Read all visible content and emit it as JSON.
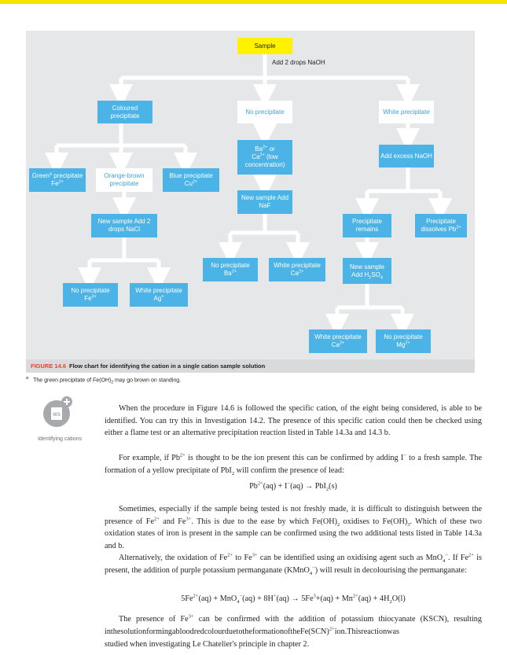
{
  "colors": {
    "accent_bar": "#f4e600",
    "box_blue": "#4bb3e6",
    "box_yellow": "#fff200",
    "figure_label": "#e9412d"
  },
  "flowchart": {
    "sample": "Sample",
    "add_naoh": "Add 2 drops NaOH",
    "coloured_precipitate": "Coloured precipitate",
    "no_precipitate": "No precipitate",
    "white_precipitate": "White precipitate",
    "green_prefix": "Green",
    "green_mark": "a",
    "green_suffix": "precipitate Fe",
    "green_charge": "2+",
    "orange_brown": "Orange-brown precipitate",
    "blue_prefix": "Blue precipitate Cu",
    "blue_charge": "2+",
    "ba_ca_1": "Ba",
    "ba_ca_2": "2+",
    "ba_ca_3": " or",
    "ba_ca_4": "Ca",
    "ba_ca_5": "2+",
    "ba_ca_6": " (low concentration)",
    "add_excess_naoh": "Add excess NaOH",
    "new_sample_nacl": "New sample Add 2 drops NaCl",
    "new_sample_naf": "New sample Add NaF",
    "precipitate_remains": "Precipitate remains",
    "precipitate_dissolves": "Precipitate dissolves Pb",
    "precipitate_dissolves_charge": "2+",
    "no_ppt_ba": "No precipitate Ba",
    "no_ppt_ba_charge": "2+",
    "white_ppt_ca": "White precipitate Ca",
    "white_ppt_ca_charge": "2+",
    "new_sample_h2so4_1": "New sample",
    "new_sample_h2so4_2": "Add H",
    "new_sample_h2so4_3": "2",
    "new_sample_h2so4_4": "SO",
    "new_sample_h2so4_5": "4",
    "no_ppt_fe": "No precipitate Fe",
    "no_ppt_fe_charge": "3+",
    "white_ppt_ag": "White precipitate Ag",
    "white_ppt_ag_charge": "+",
    "white_ppt_ca2": "White precipitate Ca",
    "white_ppt_ca2_charge": "2+",
    "no_ppt_mg": "No precipitate Mg",
    "no_ppt_mg_charge": "2+"
  },
  "figure": {
    "label": "FIGURE 14.6",
    "caption": "Flow chart for identifying the cation in a single cation sample solution"
  },
  "footnote": {
    "mark": "a",
    "text_1": "The green precipitate of Fe(OH)",
    "text_2": "2",
    "text_3": " may go brown on standing."
  },
  "sidebar": {
    "label": "Identifying cations",
    "icon_text": "WS"
  },
  "body": {
    "p1": "When the procedure in Figure 14.6 is followed the specific cation, of the eight being considered, is able to be identified. You can try this in Investigation 14.2. The presence of this specific cation could then be checked using either a flame test or an alternative precipitation reaction listed in Table 14.3a and 14.3 b.",
    "p2_a": "For example, if Pb",
    "p2_b": "2+",
    "p2_c": " is thought to be the ion present this can be confirmed by adding I",
    "p2_d": "−",
    "p2_e": " to a fresh sample. The formation of a yellow precipitate of PbI",
    "p2_f": "2",
    "p2_g": " will confirm the presence of lead:",
    "eq1_a": "Pb",
    "eq1_b": "2+",
    "eq1_c": "(aq) + I",
    "eq1_d": "−",
    "eq1_e": "(aq) → PbI",
    "eq1_f": "2",
    "eq1_g": "(s)",
    "p3_a": "Sometimes, especially if the sample being tested is not freshly made, it is difficult to distinguish between the presence of Fe",
    "p3_b": "2+",
    "p3_c": " and Fe",
    "p3_d": "3+",
    "p3_e": ". This is due to the ease by which Fe(OH)",
    "p3_f": "2",
    "p3_g": " oxidises to Fe(OH)",
    "p3_h": "3",
    "p3_i": ". Which of these two oxidation states of iron is present in the sample can be confirmed using the two additional tests listed in Table 14.3a and b.",
    "p4_a": "Alternatively, the oxidation of Fe",
    "p4_b": "2+",
    "p4_c": " to Fe",
    "p4_d": "3+",
    "p4_e": " can be identified using an oxidising agent such as MnO",
    "p4_f": "4",
    "p4_g": "−",
    "p4_h": ". If Fe",
    "p4_i": "2+",
    "p4_j": " is present, the addition of purple potassium permanganate (KMnO",
    "p4_k": "4",
    "p4_l": "−",
    "p4_m": ") will result in decolourising the permanganate:",
    "eq2_a": "5Fe",
    "eq2_b": "2+",
    "eq2_c": "(aq) + MnO",
    "eq2_d": "4",
    "eq2_e": "−",
    "eq2_f": "(aq) + 8H",
    "eq2_g": "+",
    "eq2_h": "(aq) → 5Fe",
    "eq2_i": "3",
    "eq2_j": "+(aq) + Mn",
    "eq2_k": "2+",
    "eq2_l": "(aq) + 4H",
    "eq2_m": "2",
    "eq2_n": "O(l)",
    "p5_a": "The presence of Fe",
    "p5_b": "3+",
    "p5_c": " can be confirmed with the addition of potassium thiocyanate (KSCN), resulting inthesolutionformingabloodredcolourduetotheformationoftheFe(SCN)",
    "p5_d": "2+",
    "p5_e": "ion.Thisreactionwas",
    "p6": "studied when investigating Le Chatelier's principle in chapter 2."
  }
}
